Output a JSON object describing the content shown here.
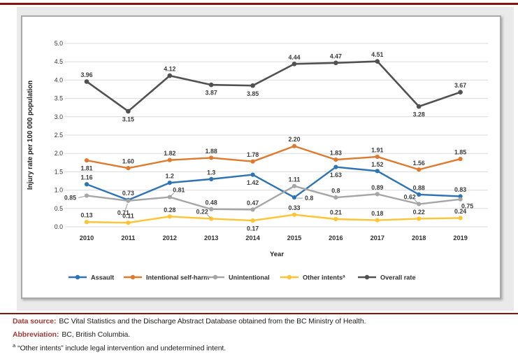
{
  "page": {
    "rule_color": "#87150F",
    "outer_panel_bg": "#EAEAEA",
    "panel_border_color": "#A9A9A9",
    "gridline_color": "#DBDBDB"
  },
  "chart_data": {
    "type": "line",
    "title": "",
    "xlabel": "Year",
    "ylabel": "Injury rate per 100 000 population",
    "categories": [
      "2010",
      "2011",
      "2012",
      "2013",
      "2014",
      "2015",
      "2016",
      "2017",
      "2018",
      "2019"
    ],
    "ylim": [
      0.0,
      5.0
    ],
    "ytick_step": 0.5,
    "ytick_labels": [
      "0.0",
      "0.5",
      "1.0",
      "1.5",
      "2.0",
      "2.5",
      "3.0",
      "3.5",
      "4.0",
      "4.5",
      "5.0"
    ],
    "grid": true,
    "legend_position": "bottom",
    "series": [
      {
        "name": "Assault",
        "color": "#2E74B5",
        "values": [
          1.16,
          0.73,
          1.2,
          1.3,
          1.42,
          0.8,
          1.63,
          1.52,
          0.88,
          0.83
        ],
        "labels": [
          "1.16",
          "0.73",
          "1.2",
          "1.3",
          "1.42",
          "0.8",
          "1.63",
          "1.52",
          "0.88",
          "0.83"
        ],
        "label_placements": [
          "above",
          "above",
          "above",
          "above",
          "below",
          "leader-right",
          "below",
          "above",
          "above",
          "above"
        ]
      },
      {
        "name": "Intentional self-harm",
        "color": "#DE7A2E",
        "values": [
          1.81,
          1.6,
          1.82,
          1.88,
          1.78,
          2.2,
          1.83,
          1.91,
          1.56,
          1.85
        ],
        "labels": [
          "1.81",
          "1.60",
          "1.82",
          "1.88",
          "1.78",
          "2.20",
          "1.83",
          "1.91",
          "1.56",
          "1.85"
        ],
        "label_placements": [
          "below",
          "above",
          "above",
          "above",
          "above",
          "above",
          "above",
          "above",
          "above",
          "above"
        ]
      },
      {
        "name": "Unintentional",
        "color": "#A6A6A6",
        "values": [
          0.85,
          0.71,
          0.81,
          0.48,
          0.47,
          1.11,
          0.8,
          0.89,
          0.62,
          0.75
        ],
        "labels": [
          "0.85",
          "0.71",
          "0.81",
          "0.48",
          "0.47",
          "1.11",
          "0.8",
          "0.89",
          "0.62",
          "0.75"
        ],
        "label_placements": [
          "leader-left",
          "leader-below-left",
          "leader-above-right",
          "above",
          "above",
          "above",
          "above",
          "above",
          "leader-above-left",
          "below-right"
        ]
      },
      {
        "name": "Other intents",
        "name_superscript": "a",
        "color": "#FFC433",
        "values": [
          0.13,
          0.11,
          0.28,
          0.22,
          0.17,
          0.33,
          0.21,
          0.18,
          0.22,
          0.24
        ],
        "labels": [
          "0.13",
          "0.11",
          "0.28",
          "0.22",
          "0.17",
          "0.33",
          "0.21",
          "0.18",
          "0.22",
          "0.24"
        ],
        "label_placements": [
          "above",
          "above",
          "above",
          "leader-above-left",
          "below",
          "above",
          "above",
          "above",
          "above",
          "above"
        ]
      },
      {
        "name": "Overall rate",
        "color": "#515151",
        "values": [
          3.96,
          3.15,
          4.12,
          3.87,
          3.85,
          4.44,
          4.47,
          4.51,
          3.28,
          3.67
        ],
        "labels": [
          "3.96",
          "3.15",
          "4.12",
          "3.87",
          "3.85",
          "4.44",
          "4.47",
          "4.51",
          "3.28",
          "3.67"
        ],
        "label_placements": [
          "above",
          "below",
          "above",
          "below",
          "below",
          "above",
          "above",
          "above",
          "below",
          "above"
        ]
      }
    ]
  },
  "footer": {
    "data_source_label": "Data source:",
    "data_source_text": "BC Vital Statistics and the Discharge Abstract Database obtained from the BC Ministry of Health.",
    "abbreviation_label": "Abbreviation:",
    "abbreviation_text": "BC, British Columbia.",
    "footnote_marker": "a",
    "footnote_text": "“Other intents” include legal intervention and undetermined intent."
  }
}
